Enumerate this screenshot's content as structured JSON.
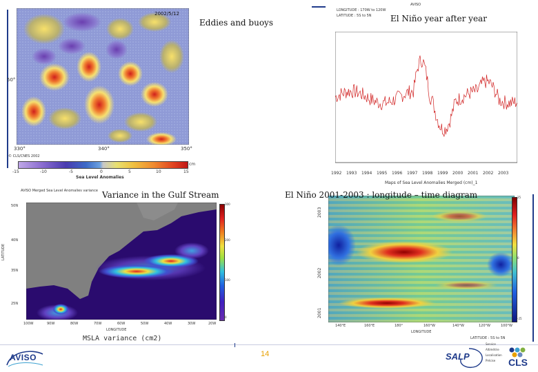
{
  "slide": {
    "page_number": "14",
    "colors": {
      "page_number": "#e8a000",
      "accent_blue": "#1e3a8a"
    }
  },
  "panels": {
    "eddies": {
      "caption": "Eddies and buoys",
      "date": "2002/5/12",
      "lat_label": "50°",
      "lon_ticks": [
        "330°",
        "340°",
        "350°"
      ],
      "copyright": "© CLS/CNES 2002",
      "colorbar_ticks": [
        "-15",
        "-10",
        "-5",
        "0",
        "5",
        "10",
        "15"
      ],
      "colorbar_unit": "cm",
      "colorbar_title": "Sea Level Anomalies"
    },
    "elnino_ts": {
      "caption": "El Niño year after year",
      "header_line1": "LONGITUDE : 170W to 120W",
      "header_line2": "LATITUDE : 5S to 5N",
      "header_right": "AVISO",
      "y_ticks": [
        "25",
        "12.5",
        "0",
        "-12.5",
        "-25"
      ],
      "x_years": [
        "1992",
        "1993",
        "1994",
        "1995",
        "1996",
        "1997",
        "1998",
        "1999",
        "2000",
        "2001",
        "2002",
        "2003"
      ],
      "footer": "Maps of Sea Level Anomalies Merged (cm)_1"
    },
    "gulf": {
      "caption": "Variance in the Gulf Stream",
      "header": "AVISO Merged Sea Level Anomalies variance",
      "y_ticks": [
        "50N",
        "40N",
        "35N",
        "25N"
      ],
      "x_ticks": [
        "100W",
        "90W",
        "80W",
        "70W",
        "60W",
        "50W",
        "40W",
        "30W",
        "20W"
      ],
      "y_label": "LATITUDE",
      "x_label": "LONGITUDE",
      "footer": "MSLA variance (cm2)",
      "colorbar_ticks": [
        "300",
        "280",
        "260",
        "240",
        "220",
        "200",
        "180",
        "160",
        "140",
        "120",
        "100",
        "80",
        "60",
        "40",
        "20",
        "0"
      ]
    },
    "hovmoller": {
      "caption": "El Niño 2001-2003 : longitude – time diagram",
      "y_years": [
        "2003",
        "2002",
        "2001"
      ],
      "x_ticks": [
        "140°E",
        "160°E",
        "180°",
        "160°W",
        "140°W",
        "120°W",
        "100°W"
      ],
      "x_label": "LONGITUDE",
      "footer": "LATITUDE : 5S to 5N",
      "colorbar_ticks": [
        "25",
        "20",
        "15",
        "10",
        "5",
        "0",
        "-5",
        "-10",
        "-15",
        "-20",
        "-25"
      ]
    }
  },
  "logos": {
    "aviso": "AVISO",
    "salp": "SALP",
    "salp_lines": [
      "Service",
      "Altimétrie",
      "Localisation",
      "Précise"
    ],
    "cls": "CLS"
  }
}
